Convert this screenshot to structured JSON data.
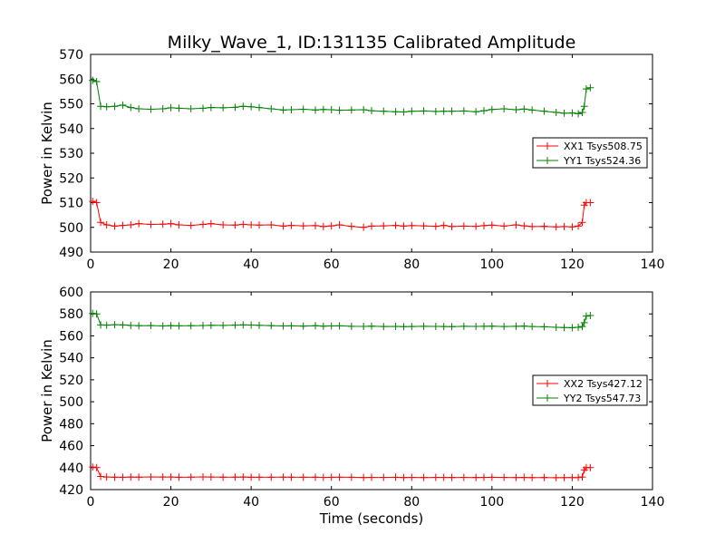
{
  "figure": {
    "title": "Milky_Wave_1, ID:131135 Calibrated Amplitude"
  },
  "chart_data": [
    {
      "type": "line",
      "title": "Milky_Wave_1, ID:131135 Calibrated Amplitude",
      "xlabel": "",
      "ylabel": "Power in Kelvin",
      "xlim": [
        0,
        140
      ],
      "ylim": [
        490,
        570
      ],
      "xticks": [
        0,
        20,
        40,
        60,
        80,
        100,
        120,
        140
      ],
      "yticks": [
        490,
        500,
        510,
        520,
        530,
        540,
        550,
        560,
        570
      ],
      "grid": false,
      "legend": "center-right",
      "series": [
        {
          "name": "XX1 Tsys508.75",
          "color": "#ff0000",
          "marker": "plus",
          "x": [
            0.5,
            1.5,
            2.5,
            4,
            6,
            8,
            10,
            12,
            15,
            18,
            20,
            22,
            25,
            28,
            30,
            33,
            36,
            38,
            40,
            42,
            45,
            48,
            50,
            53,
            56,
            58,
            60,
            62,
            65,
            68,
            70,
            73,
            76,
            78,
            80,
            83,
            86,
            88,
            90,
            93,
            96,
            98,
            100,
            103,
            106,
            108,
            110,
            113,
            116,
            118,
            120,
            121.5,
            122.5,
            123,
            123.5,
            124.5
          ],
          "y": [
            510.5,
            510,
            502,
            501,
            500.5,
            500.8,
            501,
            501.5,
            501.2,
            501.3,
            501.5,
            501,
            500.8,
            501.2,
            501.5,
            501,
            500.9,
            501.2,
            501,
            500.9,
            501,
            500.5,
            500.8,
            500.6,
            500.7,
            500.3,
            500.6,
            501,
            500.4,
            500,
            500.5,
            500.6,
            500.8,
            500.5,
            500.7,
            500.6,
            500.4,
            500.8,
            500.3,
            500.5,
            500.4,
            500.7,
            500.9,
            500.5,
            501,
            500.6,
            500.3,
            500.4,
            500.2,
            500.3,
            500.2,
            500.5,
            502,
            509,
            510,
            510
          ]
        },
        {
          "name": "YY1 Tsys524.36",
          "color": "#008000",
          "marker": "plus",
          "x": [
            0.5,
            1.5,
            2.5,
            4,
            6,
            8,
            10,
            12,
            15,
            18,
            20,
            22,
            25,
            28,
            30,
            33,
            36,
            38,
            40,
            42,
            45,
            48,
            50,
            53,
            56,
            58,
            60,
            62,
            65,
            68,
            70,
            73,
            76,
            78,
            80,
            83,
            86,
            88,
            90,
            93,
            96,
            98,
            100,
            103,
            106,
            108,
            110,
            113,
            116,
            118,
            120,
            121.5,
            122.5,
            123,
            123.5,
            124.5
          ],
          "y": [
            559.5,
            559,
            549,
            548.8,
            549,
            549.5,
            548.5,
            548,
            547.8,
            548,
            548.4,
            548.2,
            548,
            548.2,
            548.5,
            548.4,
            548.6,
            549,
            548.8,
            548.5,
            548,
            547.5,
            547.6,
            547.8,
            547.5,
            547.7,
            547.6,
            547.4,
            547.5,
            547.6,
            547.2,
            547,
            546.8,
            546.7,
            547,
            547.1,
            546.9,
            547,
            547,
            547.1,
            546.8,
            547.2,
            547.7,
            548,
            547.6,
            547.9,
            547.5,
            547,
            546.5,
            546.2,
            546.3,
            546,
            546.5,
            549,
            556,
            556.5
          ]
        }
      ]
    },
    {
      "type": "line",
      "title": "",
      "xlabel": "Time (seconds)",
      "ylabel": "Power in Kelvin",
      "xlim": [
        0,
        140
      ],
      "ylim": [
        420,
        600
      ],
      "xticks": [
        0,
        20,
        40,
        60,
        80,
        100,
        120,
        140
      ],
      "yticks": [
        420,
        440,
        460,
        480,
        500,
        520,
        540,
        560,
        580,
        600
      ],
      "grid": false,
      "legend": "center-right",
      "series": [
        {
          "name": "XX2 Tsys427.12",
          "color": "#ff0000",
          "marker": "plus",
          "x": [
            0.5,
            1.5,
            2.5,
            4,
            6,
            8,
            10,
            12,
            15,
            18,
            20,
            22,
            25,
            28,
            30,
            33,
            36,
            38,
            40,
            42,
            45,
            48,
            50,
            53,
            56,
            58,
            60,
            62,
            65,
            68,
            70,
            73,
            76,
            78,
            80,
            83,
            86,
            88,
            90,
            93,
            96,
            98,
            100,
            103,
            106,
            108,
            110,
            113,
            116,
            118,
            120,
            121.5,
            122.5,
            123,
            123.5,
            124.5
          ],
          "y": [
            440.5,
            440,
            432,
            431.5,
            431.3,
            431.2,
            431.5,
            431.4,
            431.6,
            431.5,
            431.5,
            431.2,
            431.4,
            431.6,
            431.5,
            431.3,
            431.4,
            431.5,
            431.3,
            431.2,
            431.3,
            431.4,
            431.3,
            431.2,
            431.3,
            431.1,
            431.2,
            431.3,
            431.2,
            431,
            431.1,
            431.1,
            431.2,
            431,
            431.1,
            431,
            431.1,
            431.1,
            431,
            431.1,
            431,
            431.1,
            431.2,
            431.1,
            431,
            431.1,
            430.9,
            431,
            430.8,
            430.9,
            430.9,
            431,
            431.5,
            438,
            440,
            440
          ]
        },
        {
          "name": "YY2 Tsys547.73",
          "color": "#008000",
          "marker": "plus",
          "x": [
            0.5,
            1.5,
            2.5,
            4,
            6,
            8,
            10,
            12,
            15,
            18,
            20,
            22,
            25,
            28,
            30,
            33,
            36,
            38,
            40,
            42,
            45,
            48,
            50,
            53,
            56,
            58,
            60,
            62,
            65,
            68,
            70,
            73,
            76,
            78,
            80,
            83,
            86,
            88,
            90,
            93,
            96,
            98,
            100,
            103,
            106,
            108,
            110,
            113,
            116,
            118,
            120,
            121.5,
            122.5,
            123,
            123.5,
            124.5
          ],
          "y": [
            580.5,
            580,
            570,
            569.8,
            570.2,
            570,
            569.5,
            569.2,
            569.4,
            569,
            569.3,
            569.1,
            569.2,
            569.4,
            569.6,
            569.5,
            569.8,
            570,
            569.9,
            569.6,
            569.3,
            569,
            569.1,
            568.9,
            569.2,
            568.8,
            569,
            569.1,
            568.7,
            568.6,
            568.8,
            568.5,
            568.6,
            568.4,
            568.5,
            568.7,
            568.6,
            568.5,
            568.4,
            568.7,
            568.6,
            568.7,
            568.8,
            568.5,
            568.7,
            568.9,
            568.5,
            568.3,
            567.8,
            567.6,
            567.5,
            567.8,
            568.5,
            572,
            578,
            578.5
          ]
        }
      ]
    }
  ]
}
